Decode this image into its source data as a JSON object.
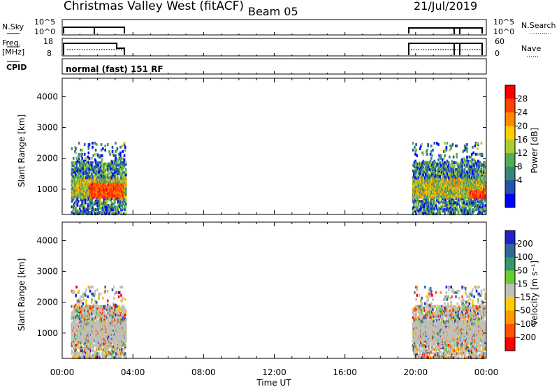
{
  "header": {
    "title": "Christmas Valley West (fitACF)",
    "beam": "Beam 05",
    "date": "21/Jul/2019"
  },
  "top_panels": {
    "nsky_label": "N.Sky",
    "nsky_ticks": [
      "10^5",
      "10^0"
    ],
    "nsearch_label": "N.Search",
    "nsearch_ticks": [
      "10^5",
      "10^0"
    ],
    "freq_label_1": "Freq.",
    "freq_label_2": "[MHz]",
    "freq_ticks": [
      "18",
      "8"
    ],
    "nave_label": "Nave",
    "nave_ticks": [
      "60",
      "0"
    ],
    "cpid_label": "CPID",
    "cpid_text": "normal (fast) 151 RF"
  },
  "chart_data": [
    {
      "type": "heatmap",
      "name": "power-panel",
      "ylabel": "Slant Range [km]",
      "yticks": [
        "4000",
        "3000",
        "2000",
        "1000"
      ],
      "ylim": [
        180,
        4600
      ],
      "xlim": [
        0,
        24
      ],
      "colorbar_label": "Power [dB]",
      "colorbar_ticks": [
        "28",
        "24",
        "20",
        "16",
        "12",
        "8",
        "4"
      ],
      "colorbar_colors": [
        "#ff0000",
        "#ff4400",
        "#ff8800",
        "#ffcc00",
        "#aacc33",
        "#55aa55",
        "#338877",
        "#2255aa",
        "#0000ff"
      ],
      "coverage_hours": [
        [
          0.5,
          3.6
        ],
        [
          19.8,
          23.9
        ]
      ]
    },
    {
      "type": "heatmap",
      "name": "velocity-panel",
      "ylabel": "Slant Range [km]",
      "yticks": [
        "4000",
        "3000",
        "2000",
        "1000"
      ],
      "ylim": [
        180,
        4600
      ],
      "xlim": [
        0,
        24
      ],
      "colorbar_label": "Velocity [m s⁻¹]",
      "colorbar_ticks": [
        "200",
        "100",
        "50",
        "15",
        "-15",
        "-50",
        "-100",
        "-200"
      ],
      "colorbar_colors": [
        "#2222cc",
        "#336699",
        "#339966",
        "#66cc33",
        "#c0c0b8",
        "#ffcc00",
        "#ff9900",
        "#ff5500",
        "#ff0000"
      ],
      "coverage_hours": [
        [
          0.5,
          3.6
        ],
        [
          19.8,
          23.9
        ]
      ]
    }
  ],
  "xaxis": {
    "label": "Time UT",
    "ticks": [
      "00:00",
      "04:00",
      "08:00",
      "12:00",
      "16:00",
      "20:00",
      "00:00"
    ]
  },
  "colors": {
    "axis": "#000000",
    "ground_scatter": "#c0c0b8"
  }
}
